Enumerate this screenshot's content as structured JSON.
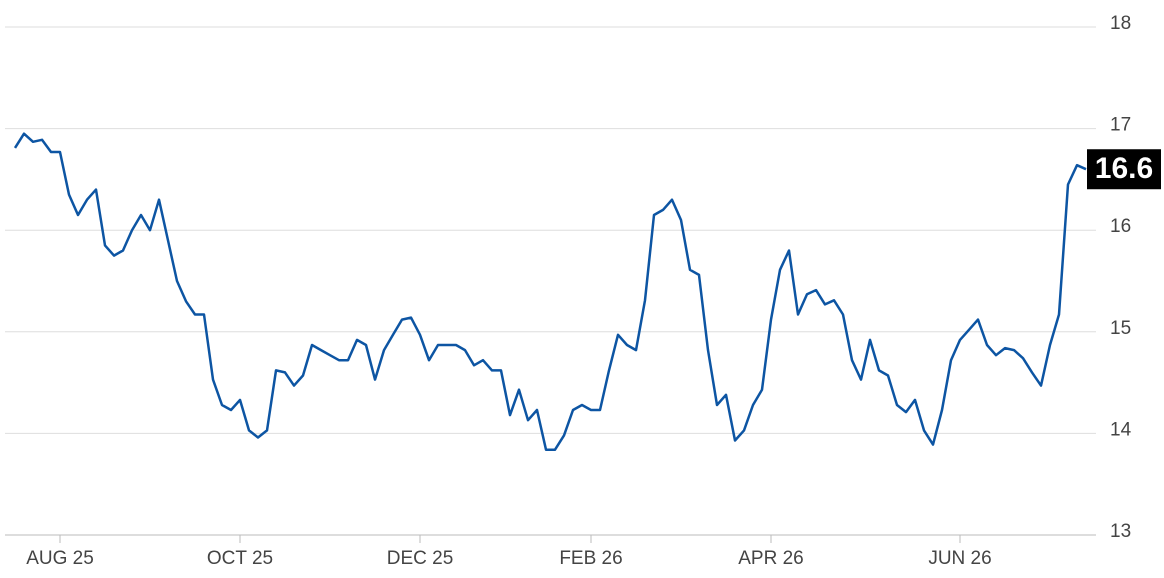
{
  "chart_data": {
    "type": "line",
    "categories": [
      null,
      null,
      null,
      null,
      null,
      "AUG 25",
      null,
      null,
      null,
      null,
      null,
      null,
      null,
      null,
      null,
      null,
      null,
      null,
      null,
      null,
      null,
      null,
      null,
      null,
      null,
      "OCT 25",
      null,
      null,
      null,
      null,
      null,
      null,
      null,
      null,
      null,
      null,
      null,
      null,
      null,
      null,
      null,
      null,
      null,
      null,
      null,
      "DEC 25",
      null,
      null,
      null,
      null,
      null,
      null,
      null,
      null,
      null,
      null,
      null,
      null,
      null,
      null,
      null,
      null,
      null,
      null,
      "FEB 26",
      null,
      null,
      null,
      null,
      null,
      null,
      null,
      null,
      null,
      null,
      null,
      null,
      null,
      null,
      null,
      null,
      null,
      null,
      null,
      "APR 26",
      null,
      null,
      null,
      null,
      null,
      null,
      null,
      null,
      null,
      null,
      null,
      null,
      null,
      null,
      null,
      null,
      null,
      null,
      null,
      null,
      "JUN 26",
      null,
      null,
      null,
      null,
      null,
      null,
      null,
      null,
      null,
      null,
      null,
      null,
      null,
      null
    ],
    "values": [
      16.81,
      16.95,
      16.87,
      16.89,
      16.77,
      16.77,
      16.35,
      16.15,
      16.3,
      16.4,
      15.85,
      15.75,
      15.8,
      16.0,
      16.15,
      16.0,
      16.3,
      15.9,
      15.5,
      15.3,
      15.17,
      15.17,
      14.53,
      14.28,
      14.23,
      14.33,
      14.03,
      13.96,
      14.03,
      14.62,
      14.6,
      14.47,
      14.57,
      14.87,
      14.82,
      14.77,
      14.72,
      14.72,
      14.92,
      14.87,
      14.53,
      14.82,
      14.97,
      15.12,
      15.14,
      14.97,
      14.72,
      14.87,
      14.87,
      14.87,
      14.82,
      14.67,
      14.72,
      14.62,
      14.62,
      14.18,
      14.43,
      14.13,
      14.23,
      13.84,
      13.84,
      13.98,
      14.23,
      14.28,
      14.23,
      14.23,
      14.62,
      14.97,
      14.87,
      14.82,
      15.31,
      16.15,
      16.2,
      16.3,
      16.1,
      15.61,
      15.56,
      14.82,
      14.28,
      14.38,
      13.93,
      14.03,
      14.28,
      14.43,
      15.12,
      15.61,
      15.8,
      15.17,
      15.37,
      15.41,
      15.27,
      15.31,
      15.17,
      14.72,
      14.53,
      14.92,
      14.62,
      14.57,
      14.28,
      14.21,
      14.33,
      14.03,
      13.89,
      14.23,
      14.72,
      14.92,
      15.02,
      15.12,
      14.87,
      14.77,
      14.84,
      14.82,
      14.74,
      14.6,
      14.47,
      14.87,
      15.17,
      16.45,
      16.64,
      16.6
    ],
    "color": "#0d55a3",
    "ylim": [
      13,
      18
    ],
    "yticks": [
      13,
      14,
      15,
      16,
      17,
      18
    ],
    "grid": true
  }
}
